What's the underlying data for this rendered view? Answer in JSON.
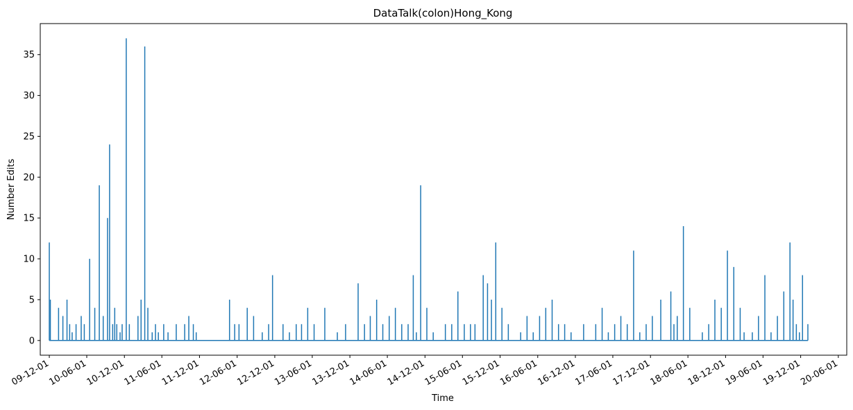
{
  "chart_data": {
    "type": "line",
    "title": "DataTalk(colon)Hong_Kong",
    "xlabel": "Time",
    "ylabel": "Number Edits",
    "ylim": [
      -1.8,
      38.8
    ],
    "yticks": [
      0,
      5,
      10,
      15,
      20,
      25,
      30,
      35
    ],
    "xticks": [
      "09-12-01",
      "10-06-01",
      "10-12-01",
      "11-06-01",
      "11-12-01",
      "12-06-01",
      "12-12-01",
      "13-06-01",
      "13-12-01",
      "14-06-01",
      "14-12-01",
      "15-06-01",
      "15-12-01",
      "16-06-01",
      "16-12-01",
      "17-06-01",
      "17-12-01",
      "18-06-01",
      "18-12-01",
      "19-06-01",
      "19-12-01",
      "20-06-01"
    ],
    "xlim": [
      "2009-10-18",
      "2020-07-12"
    ],
    "grid": false,
    "series": [
      {
        "color": "#1f77b4",
        "x": [
          "2009-12-01",
          "2009-12-06",
          "2010-01-15",
          "2010-02-05",
          "2010-02-25",
          "2010-03-10",
          "2010-03-22",
          "2010-04-10",
          "2010-05-05",
          "2010-05-20",
          "2010-06-15",
          "2010-07-10",
          "2010-08-01",
          "2010-08-20",
          "2010-09-10",
          "2010-09-20",
          "2010-10-05",
          "2010-10-15",
          "2010-10-25",
          "2010-11-10",
          "2010-11-20",
          "2010-12-10",
          "2010-12-25",
          "2011-02-05",
          "2011-02-20",
          "2011-03-10",
          "2011-03-25",
          "2011-04-15",
          "2011-05-01",
          "2011-05-15",
          "2011-06-10",
          "2011-07-01",
          "2011-08-10",
          "2011-09-20",
          "2011-10-10",
          "2011-11-01",
          "2011-11-15",
          "2012-04-25",
          "2012-05-20",
          "2012-06-10",
          "2012-07-20",
          "2012-08-20",
          "2012-10-01",
          "2012-11-01",
          "2012-11-20",
          "2013-01-10",
          "2013-02-10",
          "2013-03-15",
          "2013-04-10",
          "2013-05-10",
          "2013-06-10",
          "2013-08-01",
          "2013-10-01",
          "2013-11-10",
          "2014-01-10",
          "2014-02-10",
          "2014-03-10",
          "2014-04-10",
          "2014-05-10",
          "2014-06-10",
          "2014-07-10",
          "2014-08-10",
          "2014-09-10",
          "2014-10-05",
          "2014-10-20",
          "2014-11-10",
          "2014-12-10",
          "2015-01-10",
          "2015-03-10",
          "2015-04-10",
          "2015-05-10",
          "2015-06-10",
          "2015-07-10",
          "2015-08-01",
          "2015-09-10",
          "2015-10-01",
          "2015-10-20",
          "2015-11-10",
          "2015-12-10",
          "2016-01-10",
          "2016-03-10",
          "2016-04-10",
          "2016-05-10",
          "2016-06-10",
          "2016-07-10",
          "2016-08-10",
          "2016-09-10",
          "2016-10-10",
          "2016-11-10",
          "2017-01-10",
          "2017-03-10",
          "2017-04-10",
          "2017-05-10",
          "2017-06-10",
          "2017-07-10",
          "2017-08-10",
          "2017-09-10",
          "2017-10-10",
          "2017-11-10",
          "2017-12-10",
          "2018-01-20",
          "2018-03-10",
          "2018-03-25",
          "2018-04-10",
          "2018-05-10",
          "2018-06-10",
          "2018-08-10",
          "2018-09-10",
          "2018-10-10",
          "2018-11-10",
          "2018-12-10",
          "2019-01-10",
          "2019-02-10",
          "2019-03-01",
          "2019-04-10",
          "2019-05-10",
          "2019-06-10",
          "2019-07-10",
          "2019-08-10",
          "2019-09-10",
          "2019-10-10",
          "2019-10-25",
          "2019-11-10",
          "2019-11-25",
          "2019-12-10",
          "2020-01-05"
        ],
        "y": [
          12,
          5,
          4,
          3,
          5,
          2,
          1,
          2,
          3,
          2,
          10,
          4,
          19,
          3,
          15,
          24,
          2,
          4,
          2,
          1,
          2,
          37,
          2,
          3,
          5,
          36,
          4,
          1,
          2,
          1,
          2,
          1,
          2,
          2,
          3,
          2,
          1,
          5,
          2,
          2,
          4,
          3,
          1,
          2,
          8,
          2,
          1,
          2,
          2,
          4,
          2,
          4,
          1,
          2,
          7,
          2,
          3,
          5,
          2,
          3,
          4,
          2,
          2,
          8,
          1,
          19,
          4,
          1,
          2,
          2,
          6,
          2,
          2,
          2,
          8,
          7,
          5,
          12,
          4,
          2,
          1,
          3,
          1,
          3,
          4,
          5,
          2,
          2,
          1,
          2,
          2,
          4,
          1,
          2,
          3,
          2,
          11,
          1,
          2,
          3,
          5,
          6,
          2,
          3,
          14,
          4,
          1,
          2,
          5,
          4,
          11,
          9,
          4,
          1,
          1,
          3,
          8,
          1,
          3,
          6,
          12,
          5,
          2,
          1,
          8,
          2
        ]
      }
    ]
  }
}
